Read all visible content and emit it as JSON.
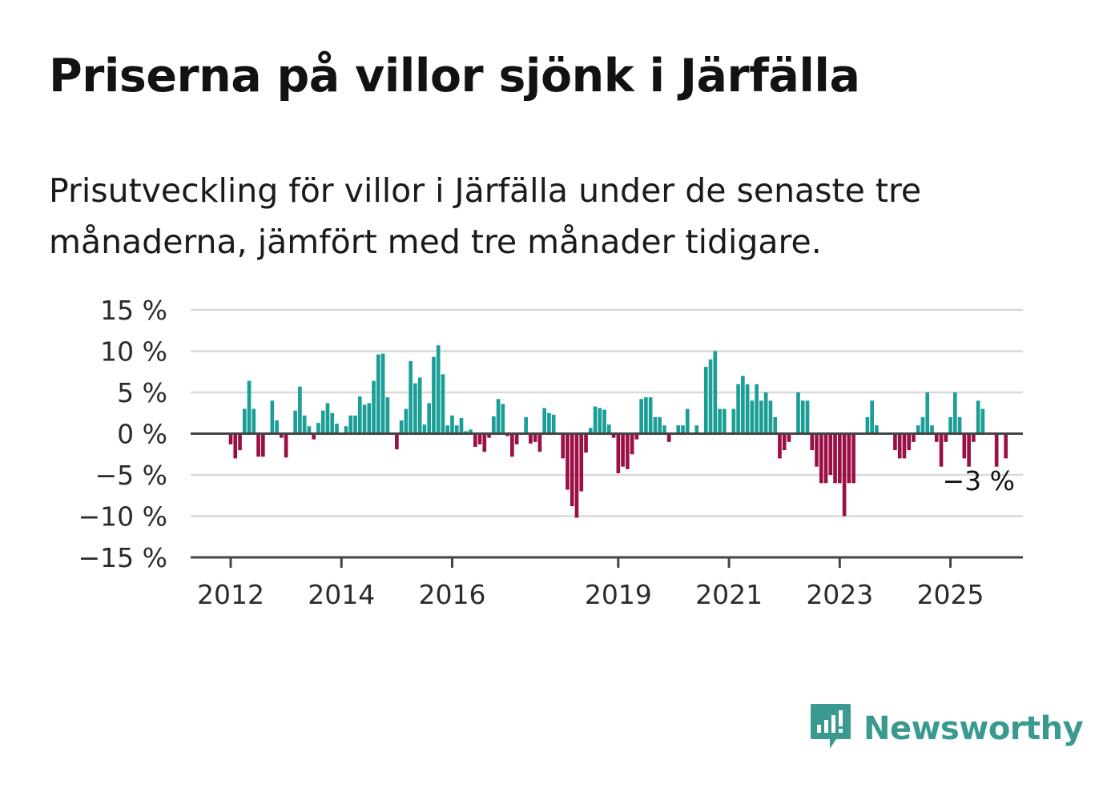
{
  "title": "Priserna på villor sjönk i Järfälla",
  "subtitle": "Prisutveckling för villor i Järfälla under de senaste tre månaderna, jämfört med tre månader tidigare.",
  "brand": {
    "name": "Newsworthy",
    "icon": "newsworthy-logo-icon"
  },
  "colors": {
    "positive": "#1a9e96",
    "negative": "#9b0f47",
    "grid": "#d9d9d9",
    "axis": "#444444"
  },
  "chart_data": {
    "type": "bar",
    "title": "",
    "xlabel": "",
    "ylabel": "",
    "ylim": [
      -15,
      15
    ],
    "yticks": [
      15,
      10,
      5,
      0,
      -5,
      -10,
      -15
    ],
    "ytick_labels": [
      "15 %",
      "10 %",
      "5 %",
      "0 %",
      "−5 %",
      "−10 %",
      "−15 %"
    ],
    "xticks": [
      2012,
      2014,
      2016,
      2019,
      2021,
      2023,
      2025
    ],
    "xtick_labels": [
      "2012",
      "2014",
      "2016",
      "2019",
      "2021",
      "2023",
      "2025"
    ],
    "x_start": "2012-01",
    "grid": true,
    "end_label": "−3 %",
    "values": [
      -1.3,
      -3,
      -2,
      3,
      6.4,
      3,
      -2.8,
      -2.8,
      0,
      4,
      1.6,
      -0.5,
      -2.9,
      0,
      2.8,
      5.7,
      2.2,
      0.9,
      -0.7,
      1.3,
      2.8,
      3.7,
      2.5,
      1.2,
      0,
      0.9,
      2.2,
      2.2,
      4.5,
      3.5,
      3.7,
      6.4,
      9.6,
      9.7,
      4.4,
      0,
      -1.9,
      1.6,
      3,
      8.8,
      6.1,
      6.8,
      1.1,
      3.7,
      9.3,
      10.7,
      7.2,
      1,
      2.2,
      1,
      1.9,
      0.3,
      0.5,
      -1.6,
      -1.3,
      -2.2,
      -0.5,
      2.1,
      4.2,
      3.6,
      -0.3,
      -2.8,
      -1.3,
      0,
      2,
      -1.2,
      -1,
      -2.2,
      3.1,
      2.5,
      2.3,
      0,
      -3,
      -6.8,
      -8.8,
      -10.2,
      -7,
      -2.3,
      0.7,
      3.3,
      3.1,
      2.9,
      1.1,
      -0.5,
      -4.8,
      -4,
      -4.3,
      -2.5,
      -0.7,
      4.2,
      4.4,
      4.4,
      2,
      2,
      1,
      -1,
      0,
      1,
      1,
      3,
      0,
      1,
      0,
      8.1,
      9,
      10,
      3,
      3,
      0,
      3,
      6,
      7,
      6,
      4,
      6,
      4,
      5,
      4,
      2,
      -3,
      -2,
      -1,
      0,
      5,
      4,
      4,
      -2,
      -4,
      -6,
      -6,
      -5,
      -6,
      -6,
      -10,
      -6,
      -6,
      0,
      0,
      2,
      4,
      1,
      0,
      0,
      0,
      -2,
      -3,
      -3,
      -2,
      -1,
      1,
      2,
      5,
      1,
      -1,
      -4,
      -1,
      2,
      5,
      2,
      -3,
      -4,
      -1,
      4,
      3,
      0,
      0,
      -4,
      0,
      -3
    ]
  }
}
